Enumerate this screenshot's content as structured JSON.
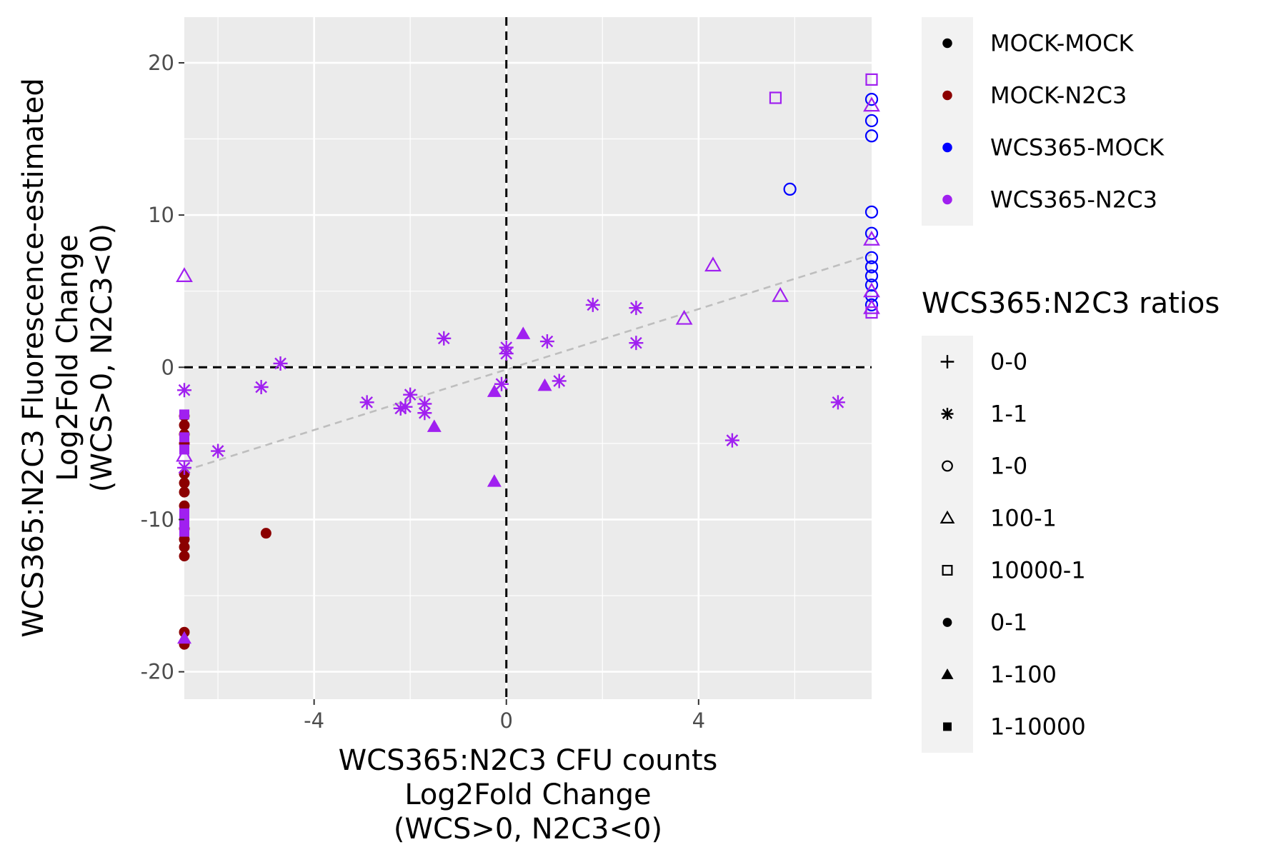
{
  "chart_data": {
    "type": "scatter",
    "title": "",
    "xlabel": [
      "WCS365:N2C3 CFU counts",
      "Log2Fold Change",
      "(WCS>0, N2C3<0)"
    ],
    "ylabel": [
      "WCS365:N2C3 Fluorescence-estimated",
      "Log2Fold Change",
      "(WCS>0, N2C3<0)"
    ],
    "xlim": [
      -6.7,
      7.6
    ],
    "ylim": [
      -21.8,
      23
    ],
    "x_ticks": [
      -4,
      0,
      4
    ],
    "y_ticks": [
      -20,
      -10,
      0,
      10,
      20
    ],
    "grid": true,
    "reference_lines": {
      "x": 0,
      "y": 0,
      "style": "dashed",
      "color": "#000000"
    },
    "trend_line": {
      "x": [
        -6.7,
        7.6
      ],
      "y": [
        -6.8,
        7.4
      ],
      "style": "dashed",
      "color": "#bebebe"
    },
    "color_legend": {
      "title": "",
      "entries": [
        {
          "name": "MOCK-MOCK",
          "color": "#000000"
        },
        {
          "name": "MOCK-N2C3",
          "color": "#8b0000"
        },
        {
          "name": "WCS365-MOCK",
          "color": "#0000ff"
        },
        {
          "name": "WCS365-N2C3",
          "color": "#a020f0"
        }
      ]
    },
    "shape_legend": {
      "title": "WCS365:N2C3 ratios",
      "entries": [
        {
          "name": "0-0",
          "shape": "plus"
        },
        {
          "name": "1-1",
          "shape": "asterisk"
        },
        {
          "name": "1-0",
          "shape": "open-circle"
        },
        {
          "name": "100-1",
          "shape": "open-triangle"
        },
        {
          "name": "10000-1",
          "shape": "open-square"
        },
        {
          "name": "0-1",
          "shape": "filled-circle"
        },
        {
          "name": "1-100",
          "shape": "filled-triangle"
        },
        {
          "name": "1-10000",
          "shape": "filled-square"
        }
      ]
    },
    "points": [
      {
        "x": -5.0,
        "y": -10.9,
        "color": "MOCK-N2C3",
        "shape": "filled-circle"
      },
      {
        "x": -6.7,
        "y": -3.2,
        "color": "MOCK-N2C3",
        "shape": "filled-circle"
      },
      {
        "x": -6.7,
        "y": -3.8,
        "color": "MOCK-N2C3",
        "shape": "filled-circle"
      },
      {
        "x": -6.7,
        "y": -4.4,
        "color": "MOCK-N2C3",
        "shape": "filled-circle"
      },
      {
        "x": -6.7,
        "y": -5.0,
        "color": "MOCK-N2C3",
        "shape": "filled-circle"
      },
      {
        "x": -6.7,
        "y": -7.0,
        "color": "MOCK-N2C3",
        "shape": "filled-circle"
      },
      {
        "x": -6.7,
        "y": -7.6,
        "color": "MOCK-N2C3",
        "shape": "filled-circle"
      },
      {
        "x": -6.7,
        "y": -8.2,
        "color": "MOCK-N2C3",
        "shape": "filled-circle"
      },
      {
        "x": -6.7,
        "y": -9.1,
        "color": "MOCK-N2C3",
        "shape": "filled-circle"
      },
      {
        "x": -6.7,
        "y": -10.6,
        "color": "MOCK-N2C3",
        "shape": "filled-circle"
      },
      {
        "x": -6.7,
        "y": -11.3,
        "color": "MOCK-N2C3",
        "shape": "filled-circle"
      },
      {
        "x": -6.7,
        "y": -11.8,
        "color": "MOCK-N2C3",
        "shape": "filled-circle"
      },
      {
        "x": -6.7,
        "y": -12.4,
        "color": "MOCK-N2C3",
        "shape": "filled-circle"
      },
      {
        "x": -6.7,
        "y": -17.4,
        "color": "MOCK-N2C3",
        "shape": "filled-circle"
      },
      {
        "x": -6.7,
        "y": -18.2,
        "color": "MOCK-N2C3",
        "shape": "filled-circle"
      },
      {
        "x": 5.9,
        "y": 11.7,
        "color": "WCS365-MOCK",
        "shape": "open-circle"
      },
      {
        "x": 7.6,
        "y": 17.6,
        "color": "WCS365-MOCK",
        "shape": "open-circle"
      },
      {
        "x": 7.6,
        "y": 16.2,
        "color": "WCS365-MOCK",
        "shape": "open-circle"
      },
      {
        "x": 7.6,
        "y": 15.2,
        "color": "WCS365-MOCK",
        "shape": "open-circle"
      },
      {
        "x": 7.6,
        "y": 10.2,
        "color": "WCS365-MOCK",
        "shape": "open-circle"
      },
      {
        "x": 7.6,
        "y": 8.8,
        "color": "WCS365-MOCK",
        "shape": "open-circle"
      },
      {
        "x": 7.6,
        "y": 7.2,
        "color": "WCS365-MOCK",
        "shape": "open-circle"
      },
      {
        "x": 7.6,
        "y": 6.6,
        "color": "WCS365-MOCK",
        "shape": "open-circle"
      },
      {
        "x": 7.6,
        "y": 6.0,
        "color": "WCS365-MOCK",
        "shape": "open-circle"
      },
      {
        "x": 7.6,
        "y": 5.4,
        "color": "WCS365-MOCK",
        "shape": "open-circle"
      },
      {
        "x": 7.6,
        "y": 4.7,
        "color": "WCS365-MOCK",
        "shape": "open-circle"
      },
      {
        "x": 7.6,
        "y": 4.1,
        "color": "WCS365-MOCK",
        "shape": "open-circle"
      },
      {
        "x": 5.6,
        "y": 17.7,
        "color": "WCS365-N2C3",
        "shape": "open-square"
      },
      {
        "x": 7.6,
        "y": 18.9,
        "color": "WCS365-N2C3",
        "shape": "open-square"
      },
      {
        "x": 7.6,
        "y": 3.6,
        "color": "WCS365-N2C3",
        "shape": "open-square"
      },
      {
        "x": 7.6,
        "y": 17.2,
        "color": "WCS365-N2C3",
        "shape": "open-triangle"
      },
      {
        "x": 7.6,
        "y": 8.4,
        "color": "WCS365-N2C3",
        "shape": "open-triangle"
      },
      {
        "x": 7.6,
        "y": 5.0,
        "color": "WCS365-N2C3",
        "shape": "open-triangle"
      },
      {
        "x": 7.6,
        "y": 3.9,
        "color": "WCS365-N2C3",
        "shape": "open-triangle"
      },
      {
        "x": 4.3,
        "y": 6.7,
        "color": "WCS365-N2C3",
        "shape": "open-triangle"
      },
      {
        "x": 5.7,
        "y": 4.7,
        "color": "WCS365-N2C3",
        "shape": "open-triangle"
      },
      {
        "x": 3.7,
        "y": 3.2,
        "color": "WCS365-N2C3",
        "shape": "open-triangle"
      },
      {
        "x": -6.7,
        "y": 6.0,
        "color": "WCS365-N2C3",
        "shape": "open-triangle"
      },
      {
        "x": -6.7,
        "y": -5.8,
        "color": "WCS365-N2C3",
        "shape": "open-triangle"
      },
      {
        "x": 1.8,
        "y": 4.1,
        "color": "WCS365-N2C3",
        "shape": "asterisk"
      },
      {
        "x": 2.7,
        "y": 3.9,
        "color": "WCS365-N2C3",
        "shape": "asterisk"
      },
      {
        "x": 2.7,
        "y": 1.6,
        "color": "WCS365-N2C3",
        "shape": "asterisk"
      },
      {
        "x": 0.85,
        "y": 1.7,
        "color": "WCS365-N2C3",
        "shape": "asterisk"
      },
      {
        "x": 0.0,
        "y": 1.3,
        "color": "WCS365-N2C3",
        "shape": "asterisk"
      },
      {
        "x": 0.0,
        "y": 0.9,
        "color": "WCS365-N2C3",
        "shape": "asterisk"
      },
      {
        "x": -1.3,
        "y": 1.9,
        "color": "WCS365-N2C3",
        "shape": "asterisk"
      },
      {
        "x": -4.7,
        "y": 0.25,
        "color": "WCS365-N2C3",
        "shape": "asterisk"
      },
      {
        "x": -5.1,
        "y": -1.3,
        "color": "WCS365-N2C3",
        "shape": "asterisk"
      },
      {
        "x": -6.0,
        "y": -5.5,
        "color": "WCS365-N2C3",
        "shape": "asterisk"
      },
      {
        "x": -2.9,
        "y": -2.3,
        "color": "WCS365-N2C3",
        "shape": "asterisk"
      },
      {
        "x": -2.2,
        "y": -2.7,
        "color": "WCS365-N2C3",
        "shape": "asterisk"
      },
      {
        "x": -2.1,
        "y": -2.6,
        "color": "WCS365-N2C3",
        "shape": "asterisk"
      },
      {
        "x": -2.0,
        "y": -1.8,
        "color": "WCS365-N2C3",
        "shape": "asterisk"
      },
      {
        "x": -1.7,
        "y": -2.4,
        "color": "WCS365-N2C3",
        "shape": "asterisk"
      },
      {
        "x": -1.7,
        "y": -3.0,
        "color": "WCS365-N2C3",
        "shape": "asterisk"
      },
      {
        "x": -0.1,
        "y": -1.1,
        "color": "WCS365-N2C3",
        "shape": "asterisk"
      },
      {
        "x": 1.1,
        "y": -0.9,
        "color": "WCS365-N2C3",
        "shape": "asterisk"
      },
      {
        "x": 4.7,
        "y": -4.8,
        "color": "WCS365-N2C3",
        "shape": "asterisk"
      },
      {
        "x": 6.9,
        "y": -2.3,
        "color": "WCS365-N2C3",
        "shape": "asterisk"
      },
      {
        "x": -6.7,
        "y": -1.5,
        "color": "WCS365-N2C3",
        "shape": "asterisk"
      },
      {
        "x": 0.35,
        "y": 2.2,
        "color": "WCS365-N2C3",
        "shape": "filled-triangle"
      },
      {
        "x": -0.25,
        "y": -1.6,
        "color": "WCS365-N2C3",
        "shape": "filled-triangle"
      },
      {
        "x": 0.8,
        "y": -1.2,
        "color": "WCS365-N2C3",
        "shape": "filled-triangle"
      },
      {
        "x": -1.5,
        "y": -3.9,
        "color": "WCS365-N2C3",
        "shape": "filled-triangle"
      },
      {
        "x": -0.25,
        "y": -7.5,
        "color": "WCS365-N2C3",
        "shape": "filled-triangle"
      },
      {
        "x": -6.7,
        "y": -3.1,
        "color": "WCS365-N2C3",
        "shape": "filled-square"
      },
      {
        "x": -6.7,
        "y": -4.6,
        "color": "WCS365-N2C3",
        "shape": "filled-square"
      },
      {
        "x": -6.7,
        "y": -5.4,
        "color": "WCS365-N2C3",
        "shape": "filled-square"
      },
      {
        "x": -6.7,
        "y": -9.6,
        "color": "WCS365-N2C3",
        "shape": "filled-square"
      },
      {
        "x": -6.7,
        "y": -10.2,
        "color": "WCS365-N2C3",
        "shape": "filled-square"
      },
      {
        "x": -6.7,
        "y": -10.8,
        "color": "WCS365-N2C3",
        "shape": "filled-square"
      },
      {
        "x": -6.7,
        "y": -17.8,
        "color": "WCS365-N2C3",
        "shape": "filled-triangle"
      },
      {
        "x": -6.7,
        "y": -6.6,
        "color": "WCS365-N2C3",
        "shape": "asterisk"
      }
    ]
  }
}
